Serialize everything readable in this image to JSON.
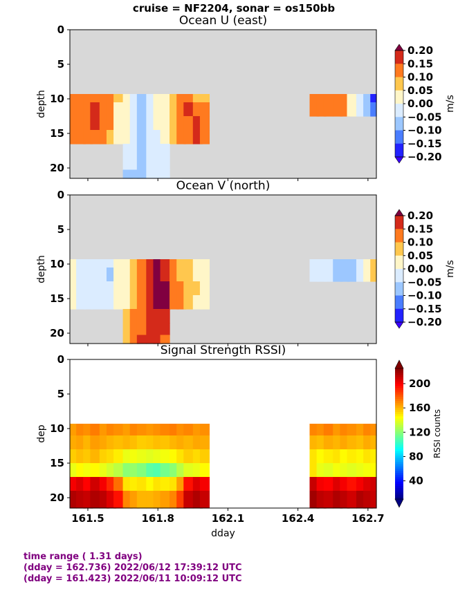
{
  "suptitle": "cruise = NF2204,  sonar = os150bb",
  "footer": {
    "line1": "time range ( 1.31 days)",
    "line2": "(dday = 162.736) 2022/06/12 17:39:12 UTC",
    "line3": "(dday = 161.423) 2022/06/11 10:09:12 UTC"
  },
  "chart_data": [
    {
      "type": "heatmap",
      "title": "Ocean U (east)",
      "ylabel": "depth",
      "xlabel": "",
      "xlim": [
        161.423,
        162.736
      ],
      "ylim": [
        21.5,
        0
      ],
      "yticks": [
        "0",
        "5",
        "10",
        "15",
        "20"
      ],
      "colorbar": {
        "label": "m/s",
        "ticks": [
          "0.20",
          "0.15",
          "0.10",
          "0.05",
          "0.00",
          "−0.05",
          "−0.10",
          "−0.15",
          "−0.20"
        ],
        "range": [
          -0.2,
          0.2
        ]
      },
      "nodata_color": "#d8d8d8",
      "x": [
        161.43,
        161.47,
        161.5,
        161.53,
        161.57,
        161.6,
        161.63,
        161.67,
        161.7,
        161.73,
        161.77,
        161.8,
        161.83,
        161.87,
        161.9,
        161.93,
        161.97,
        162.0,
        162.47,
        162.5,
        162.53,
        162.57,
        162.6,
        162.63,
        162.67,
        162.7,
        162.73
      ],
      "depth": [
        9.5,
        11.5,
        13.5,
        15.5,
        17.5,
        19.5,
        21
      ],
      "values": [
        [
          0.12,
          0.1,
          0.12,
          0.15,
          0.1,
          0.12,
          0.05,
          0.03,
          -0.02,
          -0.06,
          -0.02,
          0.02,
          0.02,
          0.05,
          0.1,
          0.12,
          0.08,
          0.08,
          0.12,
          0.15,
          0.12,
          0.12,
          0.1,
          0.0,
          -0.05,
          -0.08,
          -0.17
        ],
        [
          0.12,
          0.1,
          0.15,
          0.18,
          0.12,
          0.1,
          0.03,
          0.0,
          -0.05,
          -0.08,
          -0.04,
          0.0,
          0.03,
          0.07,
          0.12,
          0.16,
          0.15,
          0.12,
          0.12,
          0.15,
          0.12,
          0.1,
          0.1,
          0.02,
          -0.04,
          -0.06,
          -0.15
        ],
        [
          0.12,
          0.1,
          0.15,
          0.16,
          0.12,
          0.1,
          0.03,
          0.0,
          -0.05,
          -0.08,
          -0.04,
          0.0,
          0.02,
          0.06,
          0.12,
          0.15,
          0.17,
          0.15,
          null,
          null,
          null,
          null,
          null,
          null,
          null,
          null,
          null
        ],
        [
          0.1,
          0.1,
          0.12,
          0.12,
          0.1,
          0.08,
          0.02,
          0.0,
          -0.03,
          -0.07,
          -0.03,
          -0.02,
          0.0,
          0.05,
          0.1,
          0.13,
          0.18,
          0.14,
          null,
          null,
          null,
          null,
          null,
          null,
          null,
          null,
          null
        ],
        [
          null,
          null,
          null,
          null,
          null,
          null,
          null,
          -0.02,
          -0.04,
          -0.07,
          -0.03,
          -0.02,
          -0.01,
          null,
          null,
          null,
          null,
          null,
          null,
          null,
          null,
          null,
          null,
          null,
          null,
          null,
          null
        ],
        [
          null,
          null,
          null,
          null,
          null,
          null,
          null,
          -0.05,
          -0.05,
          -0.06,
          -0.04,
          -0.03,
          -0.02,
          null,
          null,
          null,
          null,
          null,
          null,
          null,
          null,
          null,
          null,
          null,
          null,
          null,
          null
        ],
        [
          null,
          null,
          null,
          null,
          null,
          null,
          null,
          -0.06,
          -0.06,
          -0.06,
          -0.04,
          -0.04,
          -0.03,
          null,
          null,
          null,
          null,
          null,
          null,
          null,
          null,
          null,
          null,
          null,
          null,
          null,
          null
        ]
      ]
    },
    {
      "type": "heatmap",
      "title": "Ocean V (north)",
      "ylabel": "depth",
      "xlabel": "",
      "xlim": [
        161.423,
        162.736
      ],
      "ylim": [
        21.5,
        0
      ],
      "yticks": [
        "0",
        "5",
        "10",
        "15",
        "20"
      ],
      "colorbar": {
        "label": "m/s",
        "ticks": [
          "0.20",
          "0.15",
          "0.10",
          "0.05",
          "0.00",
          "−0.05",
          "−0.10",
          "−0.15",
          "−0.20"
        ],
        "range": [
          -0.2,
          0.2
        ]
      },
      "nodata_color": "#d8d8d8",
      "x": [
        161.43,
        161.47,
        161.5,
        161.53,
        161.57,
        161.6,
        161.63,
        161.67,
        161.7,
        161.73,
        161.77,
        161.8,
        161.83,
        161.87,
        161.9,
        161.93,
        161.97,
        162.0,
        162.47,
        162.5,
        162.53,
        162.57,
        162.6,
        162.63,
        162.67,
        162.7,
        162.73
      ],
      "depth": [
        9.5,
        11.5,
        13.5,
        15.5,
        17.5,
        19.5,
        21
      ],
      "values": [
        [
          0.02,
          -0.02,
          -0.03,
          -0.03,
          -0.02,
          -0.02,
          0.0,
          0.02,
          0.06,
          0.1,
          0.16,
          0.22,
          0.18,
          0.12,
          0.08,
          0.06,
          0.04,
          0.02,
          -0.02,
          -0.03,
          -0.04,
          -0.06,
          -0.07,
          -0.06,
          -0.03,
          0.0,
          0.07
        ],
        [
          0.03,
          -0.03,
          -0.04,
          -0.03,
          -0.02,
          -0.06,
          0.0,
          0.03,
          0.08,
          0.12,
          0.18,
          0.22,
          0.19,
          0.14,
          0.09,
          0.06,
          0.04,
          0.02,
          -0.03,
          -0.04,
          -0.05,
          -0.06,
          -0.07,
          -0.07,
          -0.04,
          0.0,
          0.08
        ],
        [
          0.04,
          -0.03,
          -0.03,
          -0.03,
          -0.02,
          -0.02,
          0.0,
          0.03,
          0.08,
          0.12,
          0.18,
          0.22,
          0.2,
          0.15,
          0.1,
          0.07,
          0.05,
          0.02,
          null,
          null,
          null,
          null,
          null,
          null,
          null,
          null,
          null
        ],
        [
          0.04,
          -0.02,
          -0.03,
          -0.02,
          -0.02,
          -0.02,
          0.0,
          0.04,
          0.09,
          0.13,
          0.18,
          0.22,
          0.2,
          0.15,
          0.1,
          0.06,
          0.04,
          0.02,
          null,
          null,
          null,
          null,
          null,
          null,
          null,
          null,
          null
        ],
        [
          null,
          null,
          null,
          null,
          null,
          null,
          null,
          0.05,
          0.1,
          0.14,
          0.17,
          0.19,
          0.17,
          null,
          null,
          null,
          null,
          null,
          null,
          null,
          null,
          null,
          null,
          null,
          null,
          null,
          null
        ],
        [
          null,
          null,
          null,
          null,
          null,
          null,
          null,
          0.06,
          0.12,
          0.15,
          0.17,
          0.17,
          0.16,
          null,
          null,
          null,
          null,
          null,
          null,
          null,
          null,
          null,
          null,
          null,
          null,
          null,
          null
        ],
        [
          null,
          null,
          null,
          null,
          null,
          null,
          null,
          0.07,
          0.13,
          0.16,
          0.17,
          0.16,
          0.15,
          null,
          null,
          null,
          null,
          null,
          null,
          null,
          null,
          null,
          null,
          null,
          null,
          null,
          null
        ]
      ]
    },
    {
      "type": "heatmap",
      "title": "Signal Strength RSSI)",
      "ylabel": "dep",
      "xlabel": "dday",
      "xlim": [
        161.423,
        162.736
      ],
      "ylim": [
        21.5,
        0
      ],
      "yticks": [
        "0",
        "5",
        "10",
        "15",
        "20"
      ],
      "xticks": [
        161.5,
        161.8,
        162.1,
        162.4,
        162.7
      ],
      "xticklabels": [
        "161.5",
        "161.8",
        "162.1",
        "162.4",
        "162.7"
      ],
      "colorbar": {
        "label": "RSSI counts",
        "ticks": [
          "200",
          "160",
          "120",
          "80",
          "40"
        ],
        "range": [
          10,
          225
        ]
      },
      "nodata_color": "#ffffff",
      "x": [
        161.43,
        161.47,
        161.5,
        161.53,
        161.57,
        161.6,
        161.63,
        161.67,
        161.7,
        161.73,
        161.77,
        161.8,
        161.83,
        161.87,
        161.9,
        161.93,
        161.97,
        162.0,
        162.47,
        162.5,
        162.53,
        162.57,
        162.6,
        162.63,
        162.67,
        162.7,
        162.73
      ],
      "depth": [
        10,
        12,
        14,
        16,
        18,
        20
      ],
      "values": [
        [
          165,
          170,
          168,
          172,
          166,
          170,
          168,
          165,
          170,
          168,
          166,
          168,
          170,
          172,
          168,
          170,
          166,
          168,
          170,
          168,
          172,
          166,
          170,
          168,
          165,
          170,
          168
        ],
        [
          162,
          164,
          160,
          165,
          163,
          160,
          158,
          160,
          158,
          155,
          156,
          158,
          157,
          160,
          162,
          160,
          163,
          162,
          160,
          158,
          162,
          160,
          163,
          160,
          158,
          162,
          160
        ],
        [
          155,
          158,
          156,
          160,
          154,
          152,
          148,
          140,
          142,
          140,
          138,
          140,
          142,
          145,
          150,
          155,
          152,
          155,
          150,
          145,
          148,
          150,
          145,
          148,
          146,
          150,
          148
        ],
        [
          140,
          145,
          142,
          145,
          140,
          135,
          130,
          120,
          122,
          118,
          110,
          108,
          115,
          120,
          130,
          138,
          140,
          145,
          150,
          140,
          138,
          142,
          140,
          138,
          140,
          142,
          145
        ],
        [
          200,
          205,
          198,
          208,
          200,
          190,
          175,
          150,
          148,
          150,
          145,
          150,
          148,
          150,
          165,
          195,
          205,
          200,
          210,
          200,
          198,
          205,
          200,
          195,
          200,
          205,
          208
        ],
        [
          215,
          212,
          210,
          215,
          212,
          205,
          195,
          170,
          165,
          160,
          160,
          162,
          165,
          170,
          185,
          210,
          215,
          210,
          218,
          212,
          210,
          215,
          212,
          208,
          215,
          212,
          210
        ]
      ]
    }
  ]
}
